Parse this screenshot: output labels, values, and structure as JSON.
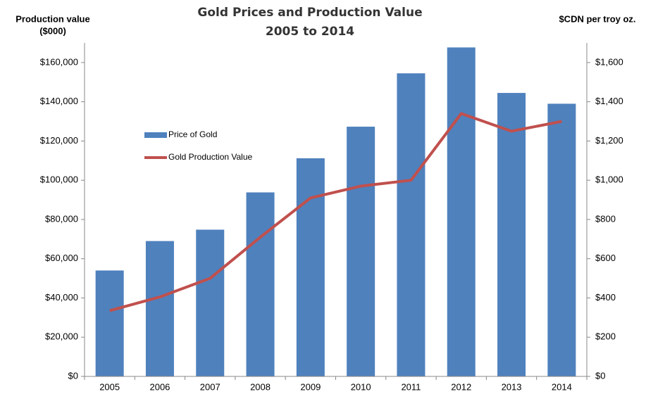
{
  "chart_data": {
    "type": "bar_line",
    "title": "Gold Prices and Production Value",
    "subtitle": "2005 to 2014",
    "y_label": [
      "Production value",
      "($000)"
    ],
    "y2_label": "$CDN per troy oz.",
    "categories": [
      "2005",
      "2006",
      "2007",
      "2008",
      "2009",
      "2010",
      "2011",
      "2012",
      "2013",
      "2014"
    ],
    "series": [
      {
        "name": "Price of Gold",
        "type": "bar",
        "axis": "y2",
        "color": "#4f81bd",
        "values": [
          540,
          690,
          748,
          938,
          1112,
          1273,
          1545,
          1677,
          1445,
          1390
        ]
      },
      {
        "name": "Gold Production Value",
        "type": "line",
        "axis": "y",
        "color": "#c0504d",
        "values": [
          33500,
          40500,
          50000,
          71000,
          91000,
          97000,
          100000,
          134000,
          125000,
          130000
        ]
      }
    ],
    "ylim": [
      0,
      170000
    ],
    "yticks": [
      {
        "value": 0,
        "label": "$0"
      },
      {
        "value": 20000,
        "label": "$20,000"
      },
      {
        "value": 40000,
        "label": "$40,000"
      },
      {
        "value": 60000,
        "label": "$60,000"
      },
      {
        "value": 80000,
        "label": "$80,000"
      },
      {
        "value": 100000,
        "label": "$100,000"
      },
      {
        "value": 120000,
        "label": "$120,000"
      },
      {
        "value": 140000,
        "label": "$140,000"
      },
      {
        "value": 160000,
        "label": "$160,000"
      }
    ],
    "y2lim": [
      0,
      1700
    ],
    "y2ticks": [
      {
        "value": 0,
        "label": "$0"
      },
      {
        "value": 200,
        "label": "$200"
      },
      {
        "value": 400,
        "label": "$400"
      },
      {
        "value": 600,
        "label": "$600"
      },
      {
        "value": 800,
        "label": "$800"
      },
      {
        "value": 1000,
        "label": "$1,000"
      },
      {
        "value": 1200,
        "label": "$1,200"
      },
      {
        "value": 1400,
        "label": "$1,400"
      },
      {
        "value": 1600,
        "label": "$1,600"
      }
    ],
    "grid": false,
    "legend": "upper left"
  }
}
